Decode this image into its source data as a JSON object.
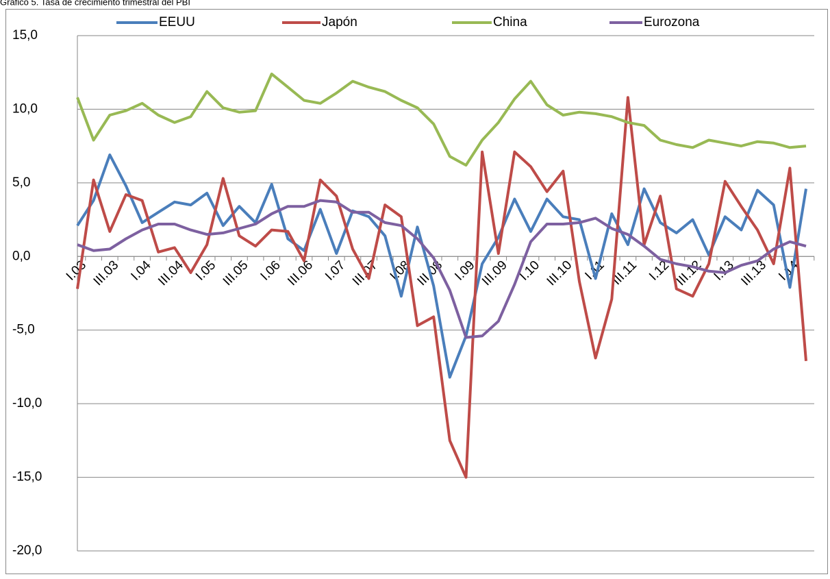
{
  "chart_data": {
    "type": "line",
    "title": "Gráfico 5. Tasa de crecimiento trimestral del PBI",
    "categories": [
      "I.03",
      null,
      "III.03",
      null,
      "I.04",
      null,
      "III.04",
      null,
      "I.05",
      null,
      "III.05",
      null,
      "I.06",
      null,
      "III.06",
      null,
      "I.07",
      null,
      "III.07",
      null,
      "I.08",
      null,
      "III.08",
      null,
      "I.09",
      null,
      "III.09",
      null,
      "I.10",
      null,
      "III.10",
      null,
      "I.11",
      null,
      "III.11",
      null,
      "I.12",
      null,
      "III.12",
      null,
      "I.13",
      null,
      "III.13",
      null,
      "I.14",
      null
    ],
    "series": [
      {
        "name": "EEUU",
        "color": "#4a7ebb",
        "values": [
          2.1,
          3.8,
          6.9,
          4.8,
          2.3,
          3.0,
          3.7,
          3.5,
          4.3,
          2.1,
          3.4,
          2.3,
          4.9,
          1.2,
          0.4,
          3.2,
          0.2,
          3.1,
          2.7,
          1.4,
          -2.7,
          2.0,
          -2.0,
          -8.2,
          -5.4,
          -0.5,
          1.3,
          3.9,
          1.7,
          3.9,
          2.7,
          2.5,
          -1.5,
          2.9,
          0.8,
          4.6,
          2.3,
          1.6,
          2.5,
          0.1,
          2.7,
          1.8,
          4.5,
          3.5,
          -2.1,
          4.6
        ]
      },
      {
        "name": "Japón",
        "color": "#be4b48",
        "values": [
          -2.2,
          5.2,
          1.7,
          4.2,
          3.8,
          0.3,
          0.6,
          -1.1,
          0.8,
          5.3,
          1.4,
          0.7,
          1.8,
          1.7,
          -0.3,
          5.2,
          4.1,
          0.5,
          -1.5,
          3.5,
          2.7,
          -4.7,
          -4.1,
          -12.5,
          -15.0,
          7.1,
          0.2,
          7.1,
          6.1,
          4.4,
          5.8,
          -1.7,
          -6.9,
          -2.9,
          10.8,
          0.8,
          4.1,
          -2.2,
          -2.7,
          -0.5,
          5.1,
          3.4,
          1.8,
          -0.5,
          6.0,
          -7.1
        ]
      },
      {
        "name": "China",
        "color": "#98b954",
        "values": [
          10.8,
          7.9,
          9.6,
          9.9,
          10.4,
          9.6,
          9.1,
          9.5,
          11.2,
          10.1,
          9.8,
          9.9,
          12.4,
          11.5,
          10.6,
          10.4,
          11.1,
          11.9,
          11.5,
          11.2,
          10.6,
          10.1,
          9.0,
          6.8,
          6.2,
          7.9,
          9.1,
          10.7,
          11.9,
          10.3,
          9.6,
          9.8,
          9.7,
          9.5,
          9.1,
          8.9,
          7.9,
          7.6,
          7.4,
          7.9,
          7.7,
          7.5,
          7.8,
          7.7,
          7.4,
          7.5
        ]
      },
      {
        "name": "Eurozona",
        "color": "#7d60a0",
        "values": [
          0.8,
          0.4,
          0.5,
          1.2,
          1.8,
          2.2,
          2.2,
          1.8,
          1.5,
          1.6,
          1.9,
          2.2,
          2.9,
          3.4,
          3.4,
          3.8,
          3.7,
          3.0,
          3.0,
          2.3,
          2.1,
          1.2,
          -0.1,
          -2.3,
          -5.5,
          -5.4,
          -4.4,
          -1.9,
          1.0,
          2.2,
          2.2,
          2.3,
          2.6,
          1.9,
          1.5,
          0.7,
          -0.2,
          -0.5,
          -0.7,
          -1.0,
          -1.1,
          -0.6,
          -0.3,
          0.5,
          1.0,
          0.7
        ]
      }
    ],
    "ylim": [
      -20,
      15
    ],
    "yticks": [
      {
        "value": -20,
        "label": "-20,0"
      },
      {
        "value": -15,
        "label": "-15,0"
      },
      {
        "value": -10,
        "label": "-10,0"
      },
      {
        "value": -5,
        "label": "-5,0"
      },
      {
        "value": 0,
        "label": "0,0"
      },
      {
        "value": 5,
        "label": "5,0"
      },
      {
        "value": 10,
        "label": "10,0"
      },
      {
        "value": 15,
        "label": "15,0"
      }
    ],
    "grid": true,
    "legend": "top"
  }
}
